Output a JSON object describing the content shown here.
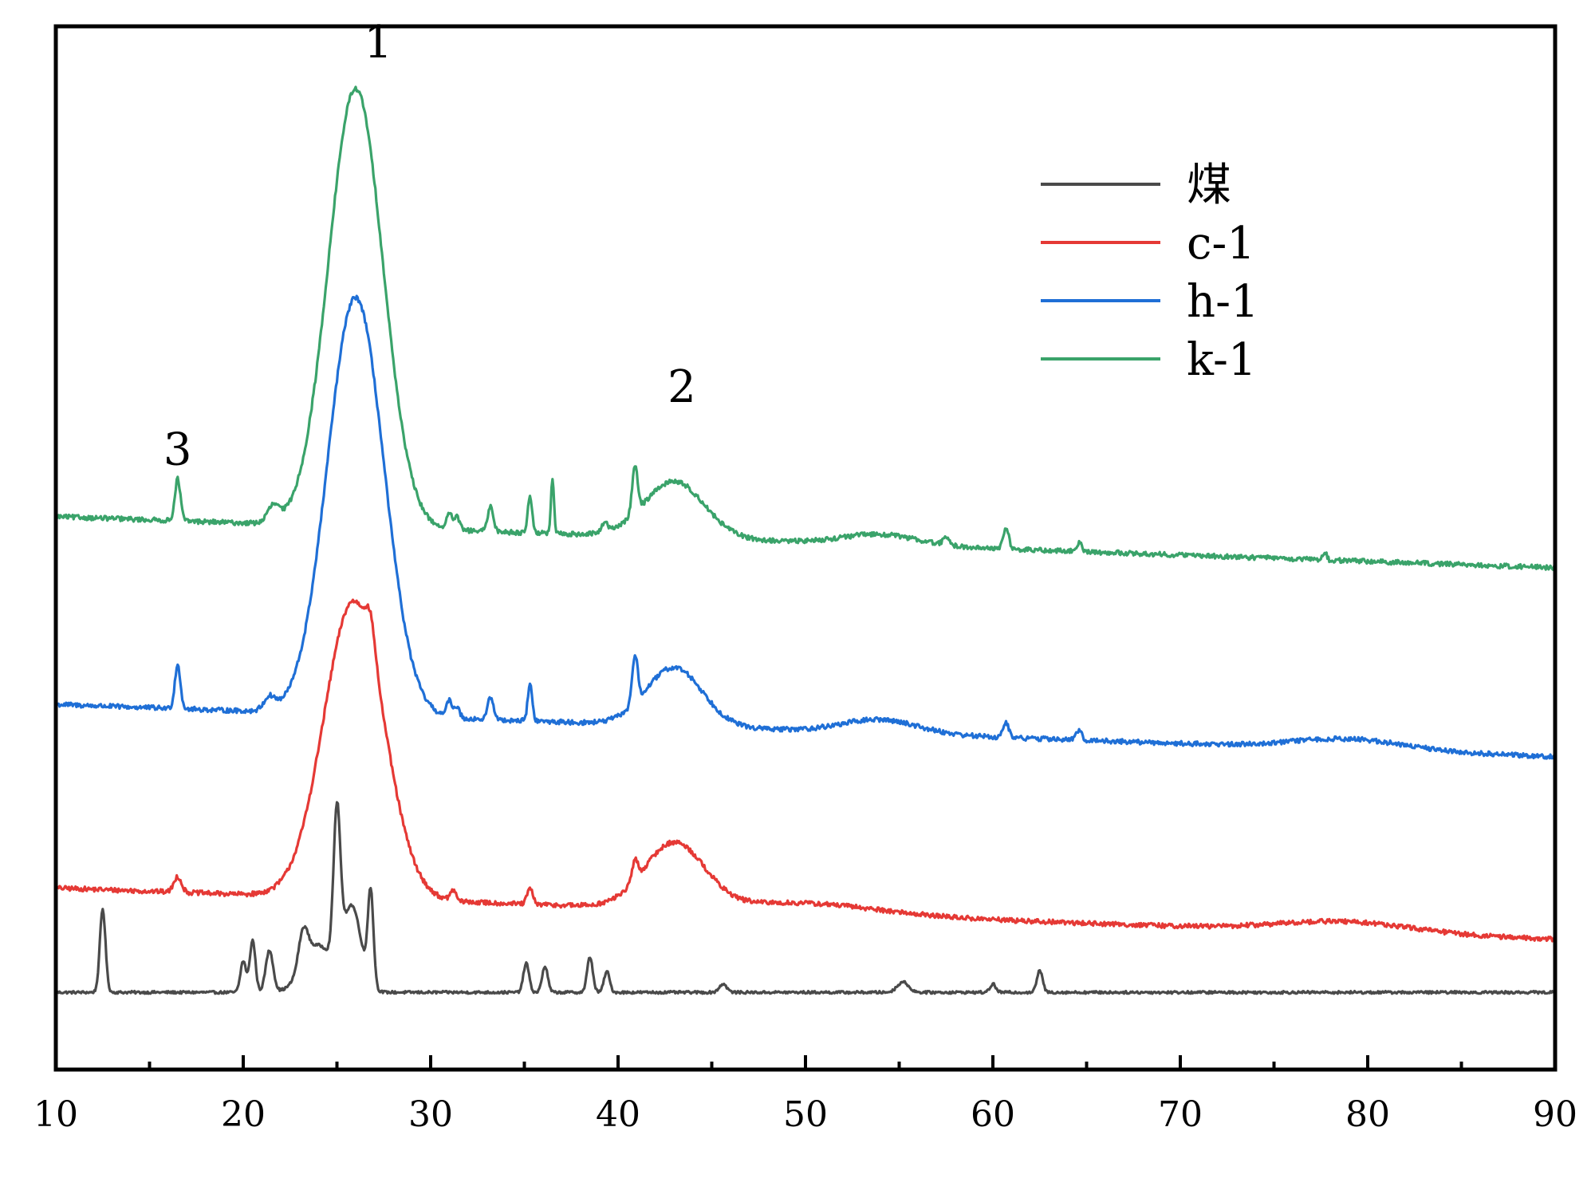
{
  "chart_data": {
    "type": "line",
    "title": "",
    "xlabel": "",
    "ylabel": "",
    "xlim": [
      10,
      90
    ],
    "ylim": [
      0,
      100
    ],
    "y_ticks_shown": false,
    "x_ticks": [
      10,
      20,
      30,
      40,
      50,
      60,
      70,
      80,
      90
    ],
    "x_tick_labels": [
      "10",
      "20",
      "30",
      "40",
      "50",
      "60",
      "70",
      "80",
      "90"
    ],
    "grid": false,
    "legend_position": "top-right",
    "annotations": [
      {
        "text": "1",
        "x": 27.2,
        "y": 97
      },
      {
        "text": "2",
        "x": 43.4,
        "y": 64
      },
      {
        "text": "3",
        "x": 16.5,
        "y": 58
      }
    ],
    "series": [
      {
        "name": "煤",
        "color": "#4a4a4a",
        "baseline": 7.4,
        "end": 7.4,
        "peaks": [
          {
            "x": 12.5,
            "h": 8.0,
            "w": 0.15
          },
          {
            "x": 20.0,
            "h": 3.0,
            "w": 0.15
          },
          {
            "x": 20.5,
            "h": 5.0,
            "w": 0.15
          },
          {
            "x": 21.4,
            "h": 4.0,
            "w": 0.2
          },
          {
            "x": 23.2,
            "h": 3.5,
            "w": 0.25
          },
          {
            "x": 24.0,
            "h": 4.5,
            "w": 0.8
          },
          {
            "x": 25.0,
            "h": 14.0,
            "w": 0.18
          },
          {
            "x": 25.8,
            "h": 8.0,
            "w": 0.5
          },
          {
            "x": 26.8,
            "h": 9.0,
            "w": 0.15
          },
          {
            "x": 35.1,
            "h": 2.8,
            "w": 0.15
          },
          {
            "x": 36.1,
            "h": 2.5,
            "w": 0.15
          },
          {
            "x": 38.5,
            "h": 3.4,
            "w": 0.15
          },
          {
            "x": 39.4,
            "h": 2.0,
            "w": 0.15
          },
          {
            "x": 45.6,
            "h": 0.8,
            "w": 0.2
          },
          {
            "x": 55.2,
            "h": 1.0,
            "w": 0.3
          },
          {
            "x": 60.0,
            "h": 0.8,
            "w": 0.15
          },
          {
            "x": 62.5,
            "h": 2.1,
            "w": 0.15
          }
        ]
      },
      {
        "name": "c-1",
        "color": "#e53935",
        "baseline": 17.4,
        "end": 12.5,
        "peaks": [
          {
            "x": 16.5,
            "h": 1.5,
            "w": 0.2
          },
          {
            "x": 25.9,
            "h": 28.5,
            "w": 1.6
          },
          {
            "x": 26.8,
            "h": 3.0,
            "w": 0.25
          },
          {
            "x": 31.2,
            "h": 1.0,
            "w": 0.15
          },
          {
            "x": 35.3,
            "h": 1.5,
            "w": 0.15
          },
          {
            "x": 40.9,
            "h": 2.0,
            "w": 0.15
          },
          {
            "x": 43.0,
            "h": 6.2,
            "w": 1.6
          },
          {
            "x": 50.0,
            "h": 1.0,
            "w": 4.0
          },
          {
            "x": 78.8,
            "h": 1.0,
            "w": 3.5
          }
        ]
      },
      {
        "name": "h-1",
        "color": "#1f6fd6",
        "baseline": 35.0,
        "end": 30.0,
        "peaks": [
          {
            "x": 16.5,
            "h": 4.2,
            "w": 0.15
          },
          {
            "x": 21.4,
            "h": 1.2,
            "w": 0.3
          },
          {
            "x": 26.0,
            "h": 40.0,
            "w": 1.5
          },
          {
            "x": 31.0,
            "h": 1.5,
            "w": 0.15
          },
          {
            "x": 31.4,
            "h": 1.0,
            "w": 0.15
          },
          {
            "x": 33.2,
            "h": 2.2,
            "w": 0.15
          },
          {
            "x": 35.3,
            "h": 3.5,
            "w": 0.12
          },
          {
            "x": 40.9,
            "h": 4.6,
            "w": 0.15
          },
          {
            "x": 43.0,
            "h": 5.6,
            "w": 1.5
          },
          {
            "x": 54.0,
            "h": 1.3,
            "w": 2.0
          },
          {
            "x": 60.7,
            "h": 1.4,
            "w": 0.15
          },
          {
            "x": 64.6,
            "h": 0.9,
            "w": 0.15
          },
          {
            "x": 79.0,
            "h": 1.0,
            "w": 3.0
          }
        ]
      },
      {
        "name": "k-1",
        "color": "#3aa36a",
        "baseline": 53.0,
        "end": 48.1,
        "peaks": [
          {
            "x": 16.5,
            "h": 4.0,
            "w": 0.15
          },
          {
            "x": 21.6,
            "h": 1.5,
            "w": 0.3
          },
          {
            "x": 26.0,
            "h": 42.0,
            "w": 1.45
          },
          {
            "x": 31.0,
            "h": 1.4,
            "w": 0.15
          },
          {
            "x": 31.4,
            "h": 1.2,
            "w": 0.15
          },
          {
            "x": 33.2,
            "h": 2.4,
            "w": 0.15
          },
          {
            "x": 35.3,
            "h": 3.5,
            "w": 0.12
          },
          {
            "x": 36.5,
            "h": 5.3,
            "w": 0.08
          },
          {
            "x": 39.3,
            "h": 1.0,
            "w": 0.15
          },
          {
            "x": 40.9,
            "h": 4.5,
            "w": 0.15
          },
          {
            "x": 43.0,
            "h": 5.4,
            "w": 1.6
          },
          {
            "x": 54.0,
            "h": 1.0,
            "w": 2.0
          },
          {
            "x": 57.5,
            "h": 0.8,
            "w": 0.15
          },
          {
            "x": 60.7,
            "h": 2.0,
            "w": 0.15
          },
          {
            "x": 64.6,
            "h": 0.8,
            "w": 0.15
          },
          {
            "x": 77.7,
            "h": 0.8,
            "w": 0.1
          }
        ]
      }
    ]
  }
}
